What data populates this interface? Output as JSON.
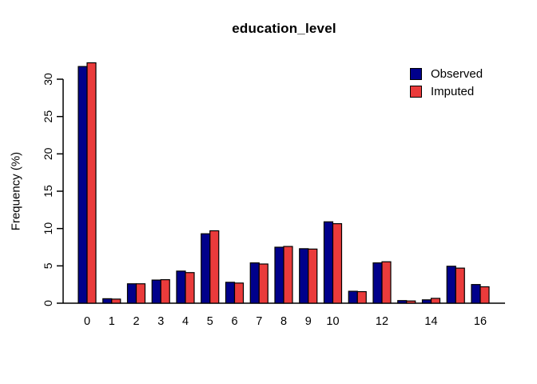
{
  "title": "education_level",
  "y_axis_title": "Frequency (%)",
  "legend": {
    "items": [
      {
        "label": "Observed",
        "color": "#00008B"
      },
      {
        "label": "Imputed",
        "color": "#EA3B3B"
      }
    ]
  },
  "chart_data": {
    "type": "bar",
    "title": "education_level",
    "xlabel": "",
    "ylabel": "Frequency (%)",
    "categories": [
      0,
      1,
      2,
      3,
      4,
      5,
      6,
      7,
      8,
      9,
      10,
      11,
      12,
      13,
      14,
      15,
      16
    ],
    "x_tick_labels": [
      "0",
      "1",
      "2",
      "3",
      "4",
      "5",
      "6",
      "7",
      "8",
      "9",
      "10",
      "",
      "12",
      "",
      "14",
      "",
      "16"
    ],
    "series": [
      {
        "name": "Observed",
        "color": "#00008B",
        "values": [
          31.7,
          0.6,
          2.6,
          3.1,
          4.3,
          9.3,
          2.8,
          5.4,
          7.5,
          7.3,
          10.9,
          1.6,
          5.4,
          0.35,
          0.45,
          4.95,
          2.5
        ]
      },
      {
        "name": "Imputed",
        "color": "#EA3B3B",
        "values": [
          32.2,
          0.55,
          2.6,
          3.15,
          4.1,
          9.7,
          2.7,
          5.25,
          7.6,
          7.25,
          10.65,
          1.55,
          5.55,
          0.3,
          0.65,
          4.7,
          2.2
        ]
      }
    ],
    "ylim": [
      0,
      33
    ],
    "yticks": [
      0,
      5,
      10,
      15,
      20,
      25,
      30
    ],
    "grid": false,
    "legend_position": "top-right",
    "bar_outline": "#000000",
    "axis_color": "#000000"
  }
}
